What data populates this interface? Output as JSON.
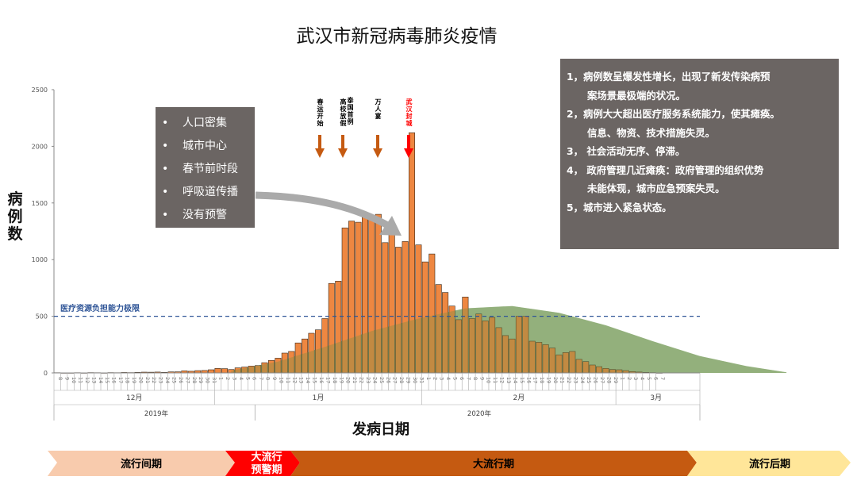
{
  "title": "武汉市新冠病毒肺炎疫情",
  "colors": {
    "bar": "#ed7d31",
    "bar_stroke": "#3a2a1a",
    "curve": "#8db07e",
    "dash": "#2f5597",
    "box": "#6b6563",
    "phase1": "#f8cbad",
    "phase2": "#ff0000",
    "phase3": "#c55a11",
    "phase4": "#ffe699"
  },
  "bullets": {
    "marker": "•",
    "items": [
      "人口密集",
      "城市中心",
      "春节前时段",
      "呼吸道传播",
      "没有预警"
    ]
  },
  "notes": {
    "lines": [
      {
        "text": "1，病例数呈爆发性增长，出现了新发传染病预",
        "indent": false
      },
      {
        "text": "案场景最极端的状况。",
        "indent": true
      },
      {
        "text": "2，病例大大超出医疗服务系统能力，使其瘫痪。",
        "indent": false
      },
      {
        "text": "信息、物资、技术措施失灵。",
        "indent": true
      },
      {
        "text": "3， 社会活动无序、停滞。",
        "indent": false
      },
      {
        "text": "4， 政府管理几近瘫痪：政府管理的组织优势",
        "indent": false
      },
      {
        "text": "未能体现，城市应急预案失灵。",
        "indent": true
      },
      {
        "text": "5，城市进入紧急状态。",
        "indent": false
      }
    ]
  },
  "events": [
    {
      "label": "春运开始",
      "color": "#000000",
      "arrow": "#c55a11"
    },
    {
      "label": "高校放假",
      "color": "#000000",
      "arrow": "#c55a11"
    },
    {
      "label": "泰国首例",
      "color": "#000000",
      "arrow": "#c55a11"
    },
    {
      "label": "万人宴",
      "color": "#000000",
      "arrow": "#c55a11"
    },
    {
      "label": "武汉封城",
      "color": "#ff0000",
      "arrow": "#ff0000"
    }
  ],
  "phases": [
    {
      "label": "流行间期",
      "color": "#f8cbad",
      "text_color": "#000000"
    },
    {
      "label": "大流行\n预警期",
      "color": "#ff0000",
      "text_color": "#ffffff"
    },
    {
      "label": "大流行期",
      "color": "#c55a11",
      "text_color": "#000000"
    },
    {
      "label": "流行后期",
      "color": "#ffe699",
      "text_color": "#000000"
    }
  ],
  "chart_data": {
    "type": "bar",
    "title": "武汉市新冠病毒肺炎疫情",
    "xlabel": "发病日期",
    "ylabel": "病例数",
    "ylim": [
      0,
      2500
    ],
    "yticks": [
      0,
      500,
      1000,
      1500,
      2000,
      2500
    ],
    "reference_line": {
      "label": "医疗资源负担能力极限",
      "value": 500
    },
    "month_labels": [
      {
        "label": "12月",
        "year": "2019年"
      },
      {
        "label": "1月",
        "year": "2020年"
      },
      {
        "label": "2月",
        "year": ""
      },
      {
        "label": "3月",
        "year": ""
      }
    ],
    "year_labels": [
      "2019年",
      "2020年"
    ],
    "categories": [
      "12-08",
      "12-09",
      "12-10",
      "12-11",
      "12-12",
      "12-13",
      "12-14",
      "12-15",
      "12-16",
      "12-17",
      "12-18",
      "12-19",
      "12-20",
      "12-21",
      "12-22",
      "12-23",
      "12-24",
      "12-25",
      "12-26",
      "12-27",
      "12-28",
      "12-29",
      "12-30",
      "12-31",
      "01-01",
      "01-02",
      "01-03",
      "01-04",
      "01-05",
      "01-06",
      "01-07",
      "01-08",
      "01-09",
      "01-10",
      "01-11",
      "01-12",
      "01-13",
      "01-14",
      "01-15",
      "01-16",
      "01-17",
      "01-18",
      "01-19",
      "01-20",
      "01-21",
      "01-22",
      "01-23",
      "01-24",
      "01-25",
      "01-26",
      "01-27",
      "01-28",
      "01-29",
      "01-30",
      "01-31",
      "02-01",
      "02-02",
      "02-03",
      "02-04",
      "02-05",
      "02-06",
      "02-07",
      "02-08",
      "02-09",
      "02-10",
      "02-11",
      "02-12",
      "02-13",
      "02-14",
      "02-15",
      "02-16",
      "02-17",
      "02-18",
      "02-19",
      "02-20",
      "02-21",
      "02-22",
      "02-23",
      "02-24",
      "02-25",
      "02-26",
      "02-27",
      "02-28",
      "02-29",
      "03-01",
      "03-02",
      "03-03",
      "03-04",
      "03-05",
      "03-06",
      "03-07"
    ],
    "tick_labels": [
      "8",
      "9",
      "10",
      "11",
      "12",
      "13",
      "14",
      "15",
      "16",
      "17",
      "18",
      "19",
      "20",
      "21",
      "22",
      "23",
      "24",
      "25",
      "26",
      "27",
      "28",
      "29",
      "30",
      "31",
      "1",
      "2",
      "3",
      "4",
      "5",
      "6",
      "7",
      "8",
      "9",
      "10",
      "11",
      "12",
      "13",
      "14",
      "15",
      "16",
      "17",
      "18",
      "19",
      "20",
      "21",
      "22",
      "23",
      "24",
      "25",
      "26",
      "27",
      "28",
      "29",
      "30",
      "31",
      "1",
      "2",
      "3",
      "4",
      "5",
      "6",
      "7",
      "8",
      "9",
      "10",
      "11",
      "12",
      "13",
      "14",
      "15",
      "16",
      "17",
      "18",
      "19",
      "20",
      "21",
      "22",
      "23",
      "24",
      "25",
      "26",
      "27",
      "28",
      "29",
      "1",
      "2",
      "3",
      "4",
      "5",
      "6",
      "7"
    ],
    "values": [
      2,
      1,
      1,
      2,
      1,
      3,
      2,
      1,
      3,
      2,
      4,
      3,
      5,
      7,
      6,
      8,
      5,
      9,
      10,
      18,
      15,
      20,
      22,
      28,
      40,
      38,
      30,
      45,
      52,
      60,
      65,
      90,
      110,
      130,
      175,
      190,
      265,
      300,
      350,
      380,
      480,
      790,
      810,
      1280,
      1340,
      1330,
      1410,
      1390,
      1400,
      1150,
      1240,
      1110,
      1160,
      2120,
      1130,
      980,
      1050,
      780,
      710,
      590,
      470,
      670,
      480,
      520,
      460,
      490,
      400,
      330,
      300,
      500,
      500,
      280,
      270,
      250,
      220,
      160,
      180,
      190,
      120,
      100,
      70,
      55,
      40,
      30,
      28,
      20,
      12,
      8,
      5,
      3,
      1
    ],
    "series": [
      {
        "name": "",
        "type": "bar",
        "values": "values"
      },
      {
        "name": "",
        "type": "area",
        "x": [
          "01-03",
          "01-10",
          "01-17",
          "01-24",
          "01-31",
          "02-07",
          "02-14",
          "02-21",
          "02-28",
          "03-06",
          "03-13",
          "03-20",
          "03-26"
        ],
        "y": [
          20,
          100,
          230,
          370,
          480,
          570,
          590,
          530,
          420,
          280,
          150,
          60,
          5
        ]
      }
    ]
  }
}
